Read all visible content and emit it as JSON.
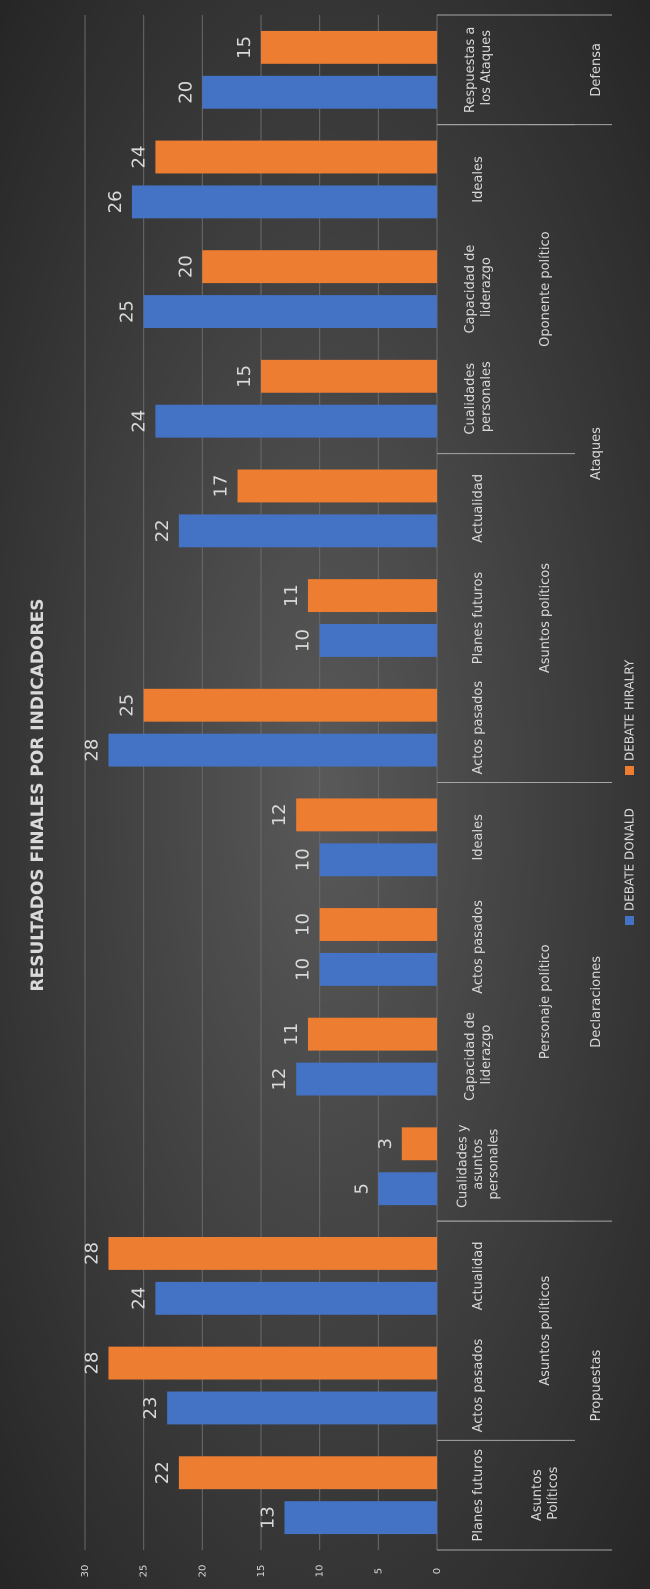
{
  "chart_data": {
    "type": "bar",
    "title": "RESULTADOS FINALES POR INDICADORES",
    "categories": [
      "Planes futuros",
      "Actos pasados",
      "Actualidad",
      "Cualidades y asuntos personales",
      "Capacidad de liderazgo",
      "Actos pasados",
      "Ideales",
      "Actos pasados",
      "Planes futuros",
      "Actualidad",
      "Cualidades personales",
      "Capacidad de liderazgo",
      "Ideales",
      "Respuestas a los Ataques"
    ],
    "groups": [
      {
        "label": "Asuntos Políticos",
        "span": 1
      },
      {
        "label": "Asuntos políticos",
        "span": 2
      },
      {
        "label": "Personaje político",
        "span": 4
      },
      {
        "label": "Asuntos políticos",
        "span": 3
      },
      {
        "label": "Oponente político",
        "span": 3
      },
      {
        "label": null,
        "span": 1
      }
    ],
    "supergroups": [
      {
        "label": "Propuestas",
        "span": 3
      },
      {
        "label": "Declaraciones",
        "span": 4
      },
      {
        "label": "Ataques",
        "span": 6
      },
      {
        "label": "Defensa",
        "span": 1
      }
    ],
    "series": [
      {
        "name": "DEBATE DONALD",
        "color": "#4472c4",
        "values": [
          13,
          23,
          24,
          5,
          12,
          10,
          10,
          28,
          10,
          22,
          24,
          25,
          26,
          20
        ]
      },
      {
        "name": "DEBATE HIRALRY",
        "color": "#ed7d31",
        "values": [
          22,
          28,
          28,
          3,
          11,
          10,
          12,
          25,
          11,
          17,
          15,
          20,
          24,
          15
        ]
      }
    ],
    "ylim": [
      0,
      30
    ],
    "yticks": [
      0,
      5,
      10,
      15,
      20,
      25,
      30
    ],
    "grid": true,
    "legend": "bottom"
  }
}
